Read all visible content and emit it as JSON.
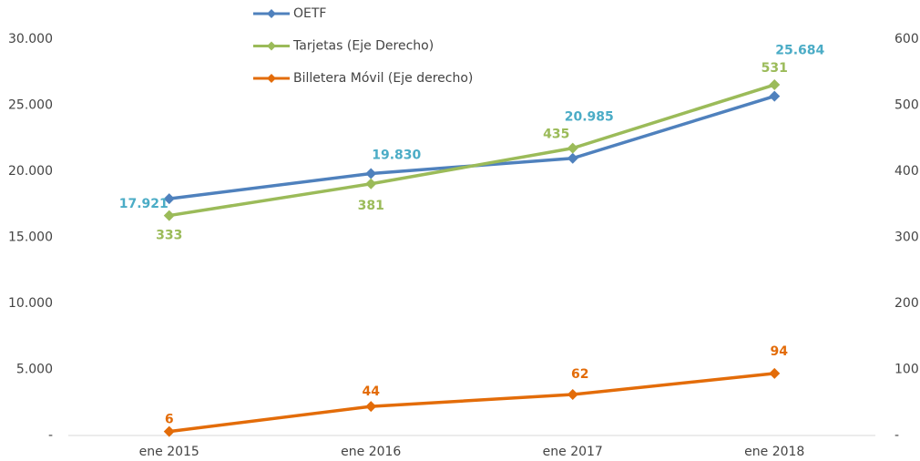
{
  "chart_data": {
    "type": "line",
    "categories": [
      "ene 2015",
      "ene 2016",
      "ene 2017",
      "ene 2018"
    ],
    "series": [
      {
        "name": "OETF",
        "color": "#4f81bd",
        "label_color": "#4bacc6",
        "values": [
          17921,
          19830,
          20985,
          25684
        ],
        "value_labels": [
          "17.921",
          "19.830",
          "20.985",
          "25.684"
        ]
      },
      {
        "name": "Tarjetas (Eje Derecho)",
        "color": "#9bbb59",
        "label_color": "#9bbb59",
        "axis": "y2",
        "values": [
          333,
          381,
          435,
          531
        ]
      },
      {
        "name": "Billetera Móvil (Eje derecho)",
        "color": "#e36c09",
        "label_color": "#e36c09",
        "axis": "y2",
        "values": [
          6,
          44,
          62,
          94
        ]
      }
    ],
    "ylim": [
      0,
      30000
    ],
    "yticks": [
      {
        "value": 0,
        "label": "-"
      },
      {
        "value": 5000,
        "label": "5.000"
      },
      {
        "value": 10000,
        "label": "10.000"
      },
      {
        "value": 15000,
        "label": "15.000"
      },
      {
        "value": 20000,
        "label": "20.000"
      },
      {
        "value": 25000,
        "label": "25.000"
      },
      {
        "value": 30000,
        "label": "30.000"
      }
    ],
    "y2lim": [
      0,
      600
    ],
    "y2ticks": [
      {
        "value": 0,
        "label": "-"
      },
      100,
      200,
      300,
      400,
      500,
      600
    ],
    "grid": false
  }
}
